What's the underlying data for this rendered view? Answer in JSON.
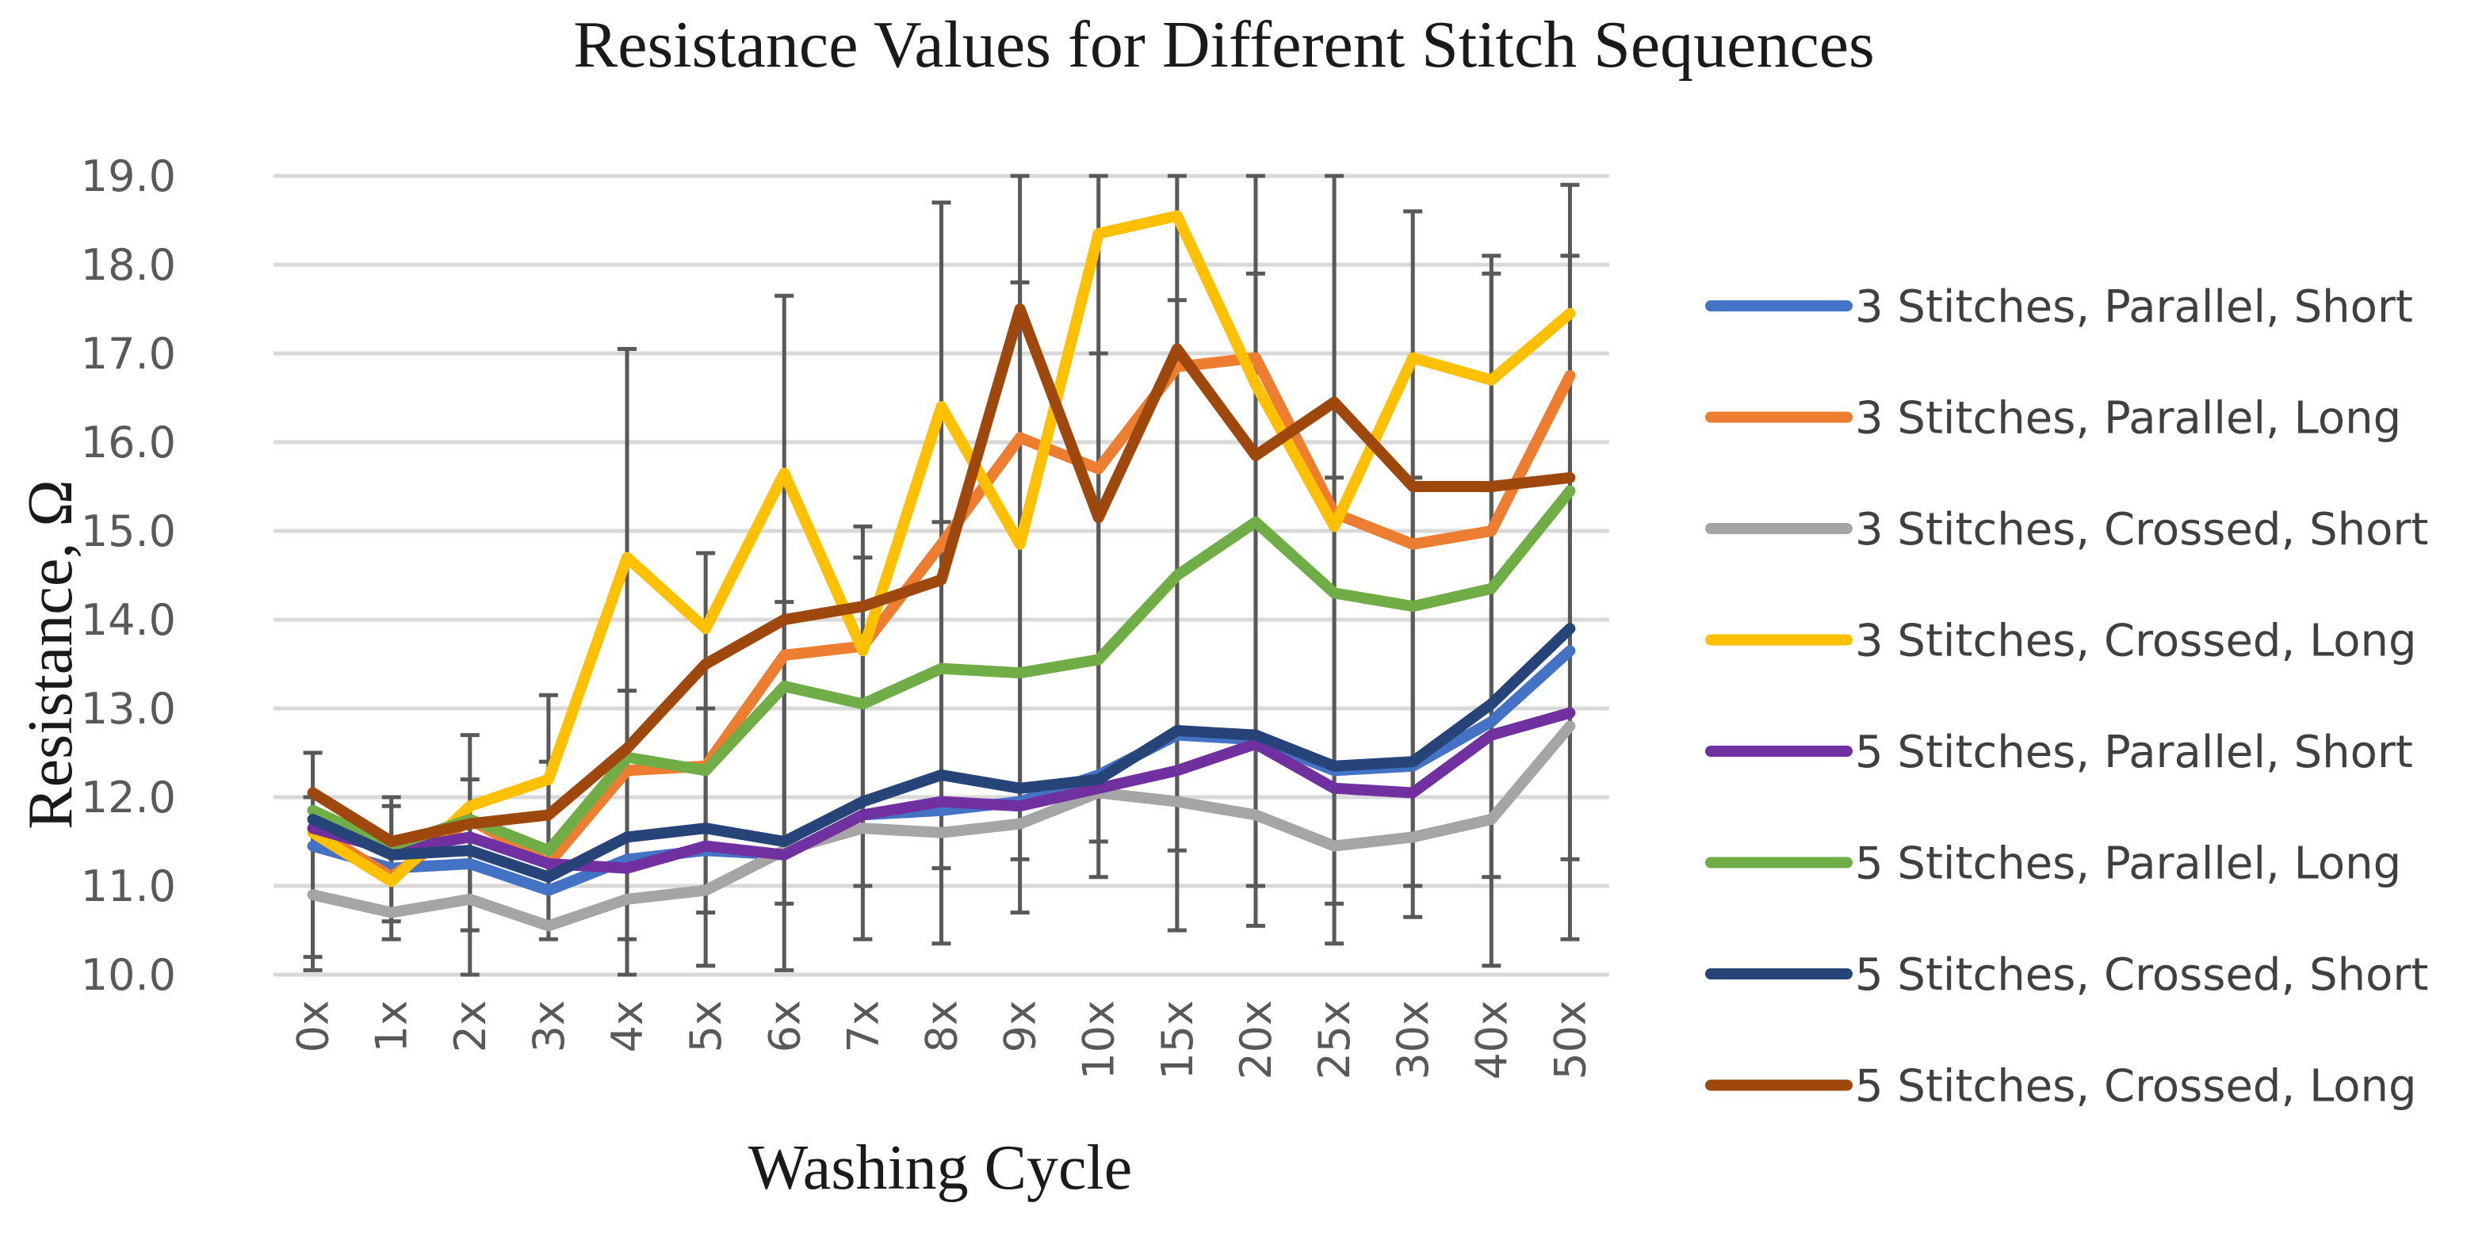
{
  "chart_data": {
    "type": "line",
    "title": "Resistance Values for Different Stitch Sequences",
    "xlabel": "Washing Cycle",
    "ylabel": "Resistance, Ω",
    "ylim": [
      10.0,
      19.0
    ],
    "yticks": [
      "10.0",
      "11.0",
      "12.0",
      "13.0",
      "14.0",
      "15.0",
      "16.0",
      "17.0",
      "18.0",
      "19.0"
    ],
    "categories": [
      "0x",
      "1x",
      "2x",
      "3x",
      "4x",
      "5x",
      "6x",
      "7x",
      "8x",
      "9x",
      "10x",
      "15x",
      "20x",
      "25x",
      "30x",
      "40x",
      "50x"
    ],
    "grid": true,
    "legend_position": "right",
    "series": [
      {
        "name": "3 Stitches, Parallel, Short",
        "color": "#4472c4",
        "values": [
          11.45,
          11.2,
          11.25,
          10.95,
          11.3,
          11.4,
          11.35,
          11.8,
          11.85,
          11.95,
          12.25,
          12.7,
          12.65,
          12.3,
          12.35,
          12.85,
          13.65
        ]
      },
      {
        "name": "3 Stitches, Parallel, Long",
        "color": "#ed7d31",
        "values": [
          11.65,
          11.1,
          11.75,
          11.25,
          12.3,
          12.35,
          13.6,
          13.7,
          14.85,
          16.05,
          15.7,
          16.85,
          16.95,
          15.2,
          14.85,
          15.0,
          16.75
        ]
      },
      {
        "name": "3 Stitches, Crossed, Short",
        "color": "#a5a5a5",
        "values": [
          10.9,
          10.7,
          10.85,
          10.55,
          10.85,
          10.95,
          11.4,
          11.65,
          11.6,
          11.7,
          12.05,
          11.95,
          11.8,
          11.45,
          11.55,
          11.75,
          12.8
        ]
      },
      {
        "name": "3 Stitches, Crossed, Long",
        "color": "#ffc000",
        "values": [
          11.6,
          11.05,
          11.9,
          12.2,
          14.7,
          13.9,
          15.65,
          13.65,
          16.4,
          14.85,
          18.35,
          18.55,
          16.65,
          15.05,
          16.95,
          16.7,
          17.45
        ]
      },
      {
        "name": "5 Stitches, Parallel, Short",
        "color": "#7030a0",
        "values": [
          11.65,
          11.4,
          11.55,
          11.25,
          11.2,
          11.45,
          11.35,
          11.8,
          11.95,
          11.9,
          12.1,
          12.3,
          12.6,
          12.1,
          12.05,
          12.7,
          12.95
        ]
      },
      {
        "name": "5 Stitches, Parallel, Long",
        "color": "#70ad47",
        "values": [
          11.85,
          11.45,
          11.75,
          11.4,
          12.45,
          12.3,
          13.25,
          13.05,
          13.45,
          13.4,
          13.55,
          14.5,
          15.1,
          14.3,
          14.15,
          14.35,
          15.45
        ]
      },
      {
        "name": "5 Stitches, Crossed, Short",
        "color": "#264478",
        "values": [
          11.75,
          11.35,
          11.4,
          11.1,
          11.55,
          11.65,
          11.5,
          11.95,
          12.25,
          12.1,
          12.2,
          12.75,
          12.7,
          12.35,
          12.4,
          13.05,
          13.9
        ]
      },
      {
        "name": "5 Stitches, Crossed, Long",
        "color": "#9e480e",
        "values": [
          12.05,
          11.5,
          11.7,
          11.8,
          12.55,
          13.5,
          14.0,
          14.15,
          14.45,
          17.5,
          15.15,
          17.05,
          15.85,
          16.45,
          15.5,
          15.5,
          15.6
        ]
      }
    ],
    "error_bars": {
      "color": "#595959",
      "ranges": [
        [
          [
            10.05,
            12.5
          ],
          [
            10.2,
            12.0
          ]
        ],
        [
          [
            10.4,
            12.0
          ],
          [
            10.6,
            11.9
          ]
        ],
        [
          [
            10.0,
            12.7
          ],
          [
            10.5,
            12.2
          ]
        ],
        [
          [
            10.4,
            13.15
          ],
          [
            10.6,
            12.4
          ]
        ],
        [
          [
            10.0,
            17.05
          ],
          [
            10.4,
            13.2
          ]
        ],
        [
          [
            10.1,
            14.75
          ],
          [
            10.7,
            13.0
          ]
        ],
        [
          [
            10.05,
            17.65
          ],
          [
            10.8,
            14.2
          ]
        ],
        [
          [
            10.4,
            15.05
          ],
          [
            11.0,
            14.7
          ]
        ],
        [
          [
            10.35,
            18.7
          ],
          [
            11.2,
            15.1
          ]
        ],
        [
          [
            10.7,
            19.0
          ],
          [
            11.3,
            17.8
          ]
        ],
        [
          [
            11.1,
            19.0
          ],
          [
            11.5,
            17.0
          ]
        ],
        [
          [
            10.5,
            19.0
          ],
          [
            11.4,
            17.6
          ]
        ],
        [
          [
            10.55,
            19.0
          ],
          [
            11.0,
            17.9
          ]
        ],
        [
          [
            10.35,
            19.0
          ],
          [
            10.8,
            15.6
          ]
        ],
        [
          [
            10.65,
            18.6
          ],
          [
            11.0,
            15.6
          ]
        ],
        [
          [
            10.1,
            18.1
          ],
          [
            11.1,
            17.9
          ]
        ],
        [
          [
            10.4,
            18.9
          ],
          [
            11.3,
            18.1
          ]
        ]
      ]
    }
  }
}
